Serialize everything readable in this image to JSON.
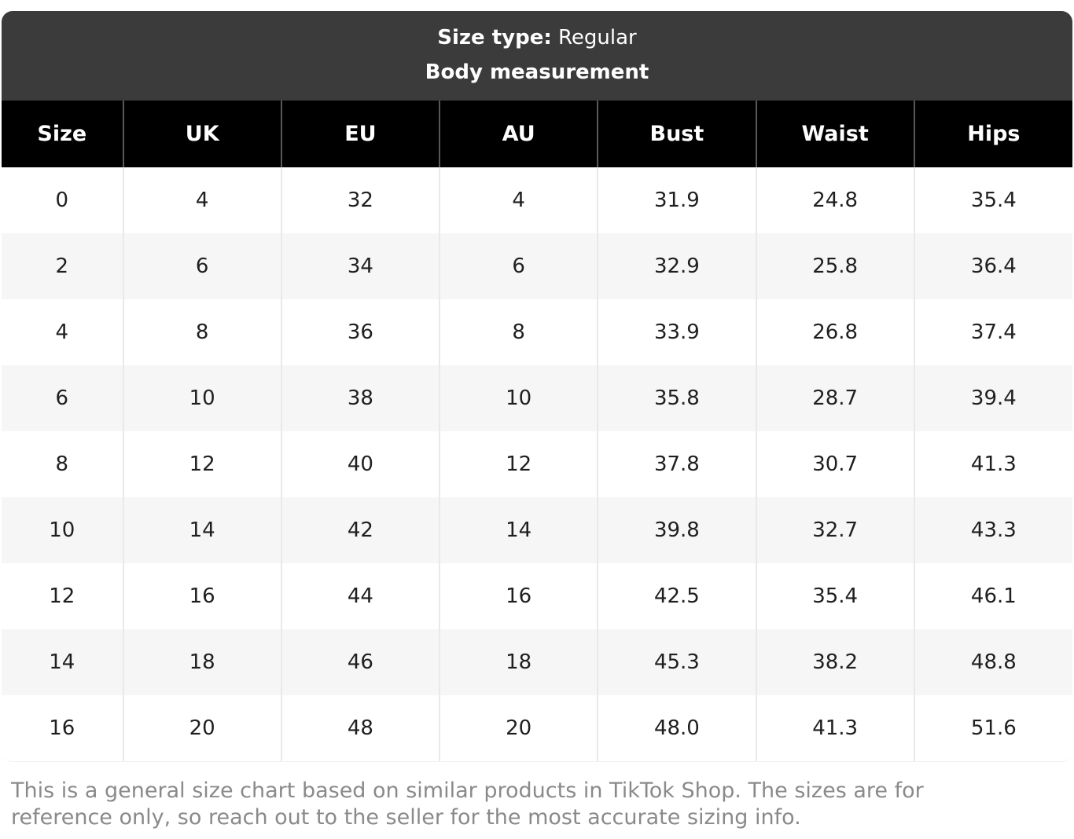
{
  "header": {
    "size_type_label": "Size type:",
    "size_type_value": "Regular",
    "section_title": "Body measurement"
  },
  "table": {
    "columns": [
      "Size",
      "UK",
      "EU",
      "AU",
      "Bust",
      "Waist",
      "Hips"
    ],
    "rows": [
      [
        "0",
        "4",
        "32",
        "4",
        "31.9",
        "24.8",
        "35.4"
      ],
      [
        "2",
        "6",
        "34",
        "6",
        "32.9",
        "25.8",
        "36.4"
      ],
      [
        "4",
        "8",
        "36",
        "8",
        "33.9",
        "26.8",
        "37.4"
      ],
      [
        "6",
        "10",
        "38",
        "10",
        "35.8",
        "28.7",
        "39.4"
      ],
      [
        "8",
        "12",
        "40",
        "12",
        "37.8",
        "30.7",
        "41.3"
      ],
      [
        "10",
        "14",
        "42",
        "14",
        "39.8",
        "32.7",
        "43.3"
      ],
      [
        "12",
        "16",
        "44",
        "16",
        "42.5",
        "35.4",
        "46.1"
      ],
      [
        "14",
        "18",
        "46",
        "18",
        "45.3",
        "38.2",
        "48.8"
      ],
      [
        "16",
        "20",
        "48",
        "20",
        "48.0",
        "41.3",
        "51.6"
      ]
    ]
  },
  "disclaimer_text": "This is a general size chart based on similar products in TikTok Shop. The sizes are for reference only, so reach out to the seller for the most accurate sizing info.",
  "colors": {
    "title_band_background": "#3b3b3b",
    "column_header_background": "#000000",
    "alt_row_background": "#f6f6f6",
    "header_divider": "#58585a",
    "body_divider": "#e9e9e9",
    "body_text": "#1f1f1f",
    "disclaimer_text_color": "#8a8a8a"
  }
}
